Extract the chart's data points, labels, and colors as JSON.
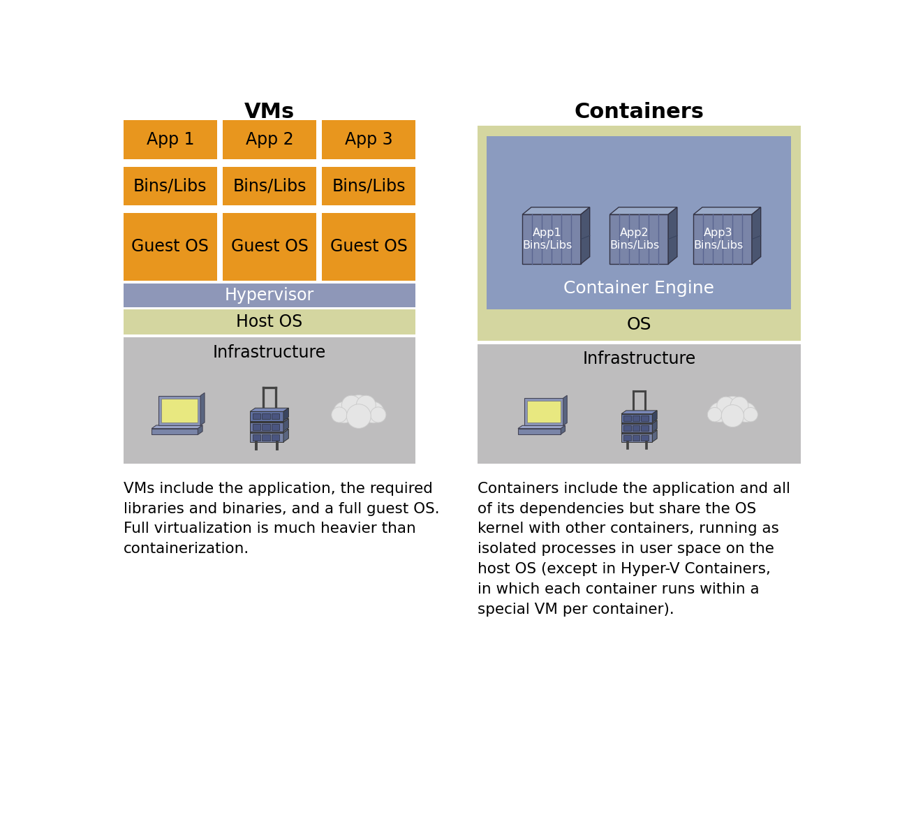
{
  "bg_color": "#ffffff",
  "orange": "#E8961E",
  "blue_lavender": "#8B9BBF",
  "light_blue": "#9DADD0",
  "olive_light": "#D4D6A0",
  "gray_infra": "#BEBDBE",
  "hypervisor_color": "#8E97B8",
  "title_vms": "VMs",
  "title_containers": "Containers",
  "vm_apps": [
    "App 1",
    "App 2",
    "App 3"
  ],
  "vm_bins": [
    "Bins/Libs",
    "Bins/Libs",
    "Bins/Libs"
  ],
  "vm_os": [
    "Guest OS",
    "Guest OS",
    "Guest OS"
  ],
  "hypervisor_label": "Hypervisor",
  "host_os_label": "Host OS",
  "infra_label_left": "Infrastructure",
  "infra_label_right": "Infrastructure",
  "container_labels": [
    "App1\nBins/Libs",
    "App2\nBins/Libs",
    "App3\nBins/Libs"
  ],
  "container_engine_label": "Container Engine",
  "os_label": "OS",
  "vm_text": "VMs include the application, the required\nlibraries and binaries, and a full guest OS.\nFull virtualization is much heavier than\ncontainerization.",
  "container_text": "Containers include the application and all\nof its dependencies but share the OS\nkernel with other containers, running as\nisolated processes in user space on the\nhost OS (except in Hyper-V Containers,\nin which each container runs within a\nspecial VM per container)."
}
